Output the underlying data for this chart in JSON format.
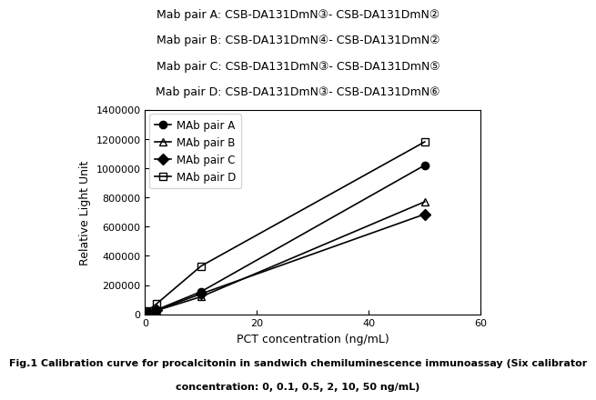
{
  "header_lines": [
    "Mab pair A: CSB-DA131DmN③- CSB-DA131DmN②",
    "Mab pair B: CSB-DA131DmN④- CSB-DA131DmN②",
    "Mab pair C: CSB-DA131DmN③- CSB-DA131DmN⑤",
    "Mab pair D: CSB-DA131DmN③- CSB-DA131DmN⑥"
  ],
  "x_values": [
    0,
    0.1,
    0.5,
    2,
    10,
    50
  ],
  "series_A_y": [
    2000,
    4000,
    10000,
    30000,
    155000,
    1020000
  ],
  "series_B_y": [
    2000,
    4000,
    9000,
    25000,
    120000,
    770000
  ],
  "series_C_y": [
    2000,
    4000,
    9000,
    27000,
    140000,
    685000
  ],
  "series_D_y": [
    4000,
    9000,
    25000,
    70000,
    330000,
    1180000
  ],
  "series_names": [
    "MAb pair A",
    "MAb pair B",
    "MAb pair C",
    "MAb pair D"
  ],
  "markers": [
    "o",
    "^",
    "D",
    "s"
  ],
  "fillstyles": [
    "full",
    "none",
    "full",
    "none"
  ],
  "xlabel": "PCT concentration (ng/mL)",
  "ylabel": "Relative Light Unit",
  "xlim": [
    0,
    60
  ],
  "ylim": [
    0,
    1400000
  ],
  "xticks": [
    0,
    20,
    40,
    60
  ],
  "yticks": [
    0,
    200000,
    400000,
    600000,
    800000,
    1000000,
    1200000,
    1400000
  ],
  "caption_line1": "Fig.1 Calibration curve for procalcitonin in sandwich chemiluminescence immunoassay (Six calibrator",
  "caption_line2": "concentration: 0, 0.1, 0.5, 2, 10, 50 ng/mL)",
  "header_fontsize": 9,
  "axis_fontsize": 9,
  "tick_fontsize": 8,
  "legend_fontsize": 8.5,
  "caption_fontsize": 8
}
